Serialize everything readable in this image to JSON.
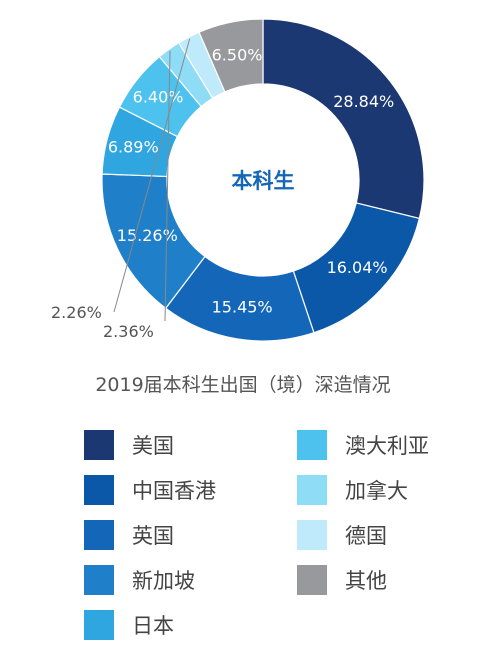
{
  "chart_data": {
    "type": "pie",
    "donut": true,
    "center_label": "本科生",
    "title": "2019届本科生出国（境）深造情况",
    "slices": [
      {
        "name": "美国",
        "value": 28.84,
        "label": "28.84%",
        "color": "#1c3873"
      },
      {
        "name": "中国香港",
        "value": 16.04,
        "label": "16.04%",
        "color": "#0b58a8"
      },
      {
        "name": "英国",
        "value": 15.45,
        "label": "15.45%",
        "color": "#1467b8"
      },
      {
        "name": "新加坡",
        "value": 15.26,
        "label": "15.26%",
        "color": "#1f7fc9"
      },
      {
        "name": "日本",
        "value": 6.89,
        "label": "6.89%",
        "color": "#2fa6e0"
      },
      {
        "name": "澳大利亚",
        "value": 6.4,
        "label": "6.40%",
        "color": "#4ec2ee"
      },
      {
        "name": "加拿大",
        "value": 2.36,
        "label": "2.36%",
        "color": "#8fdcf6"
      },
      {
        "name": "德国",
        "value": 2.26,
        "label": "2.26%",
        "color": "#bfeafb"
      },
      {
        "name": "其他",
        "value": 6.5,
        "label": "6.50%",
        "color": "#97999c"
      }
    ],
    "legend_position": "bottom"
  }
}
